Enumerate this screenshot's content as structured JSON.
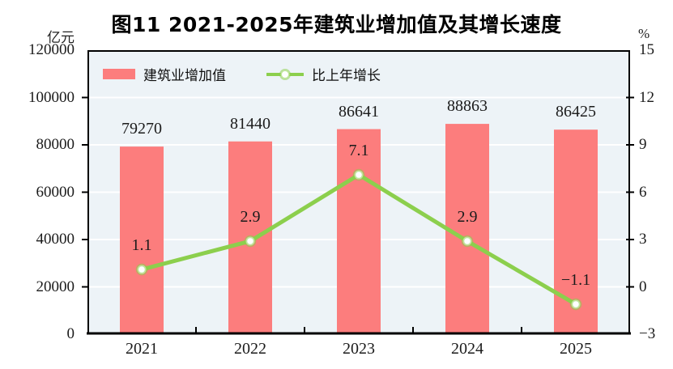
{
  "chart_data": {
    "type": "bar+line",
    "title": "图11  2021-2025年建筑业增加值及其增长速度",
    "categories": [
      "2021",
      "2022",
      "2023",
      "2024",
      "2025"
    ],
    "series": [
      {
        "name": "建筑业增加值",
        "type": "bar",
        "axis": "left",
        "color": "#FC7D7D",
        "values": [
          79270,
          81440,
          86641,
          88863,
          86425
        ]
      },
      {
        "name": "比上年增长",
        "type": "line",
        "axis": "right",
        "color": "#8CCF4D",
        "marker": "white-circle",
        "values": [
          1.1,
          2.9,
          7.1,
          2.9,
          -1.1
        ]
      }
    ],
    "axes": {
      "left": {
        "unit": "亿元",
        "min": 0,
        "max": 120000,
        "tick_step": 20000,
        "ticks": [
          0,
          20000,
          40000,
          60000,
          80000,
          100000,
          120000
        ]
      },
      "right": {
        "unit": "%",
        "min": -3,
        "max": 15,
        "tick_step": 3,
        "ticks": [
          -3,
          0,
          3,
          6,
          9,
          12,
          15
        ]
      }
    },
    "legend_position": "top-left-inside",
    "grid": "horizontal white lines on light-blue plot background",
    "plot_bg_color": "#EDF3F7",
    "data_labels": true
  }
}
